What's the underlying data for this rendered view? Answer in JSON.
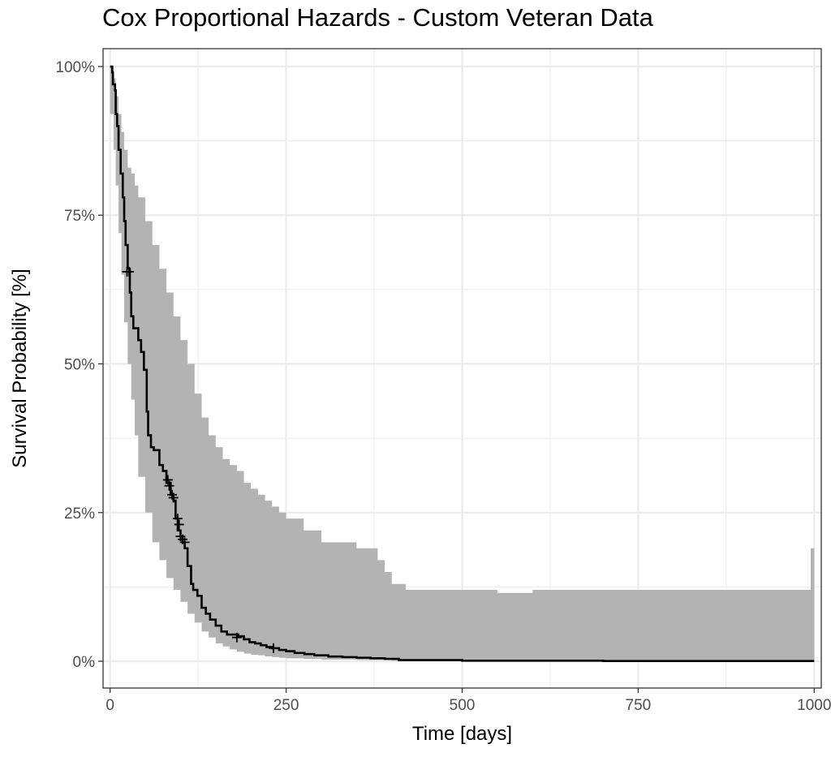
{
  "chart_data": {
    "type": "line",
    "title": "Cox Proportional Hazards - Custom Veteran Data",
    "xlabel": "Time [days]",
    "ylabel": "Survival Probability [%]",
    "xlim": [
      -10,
      1010
    ],
    "ylim": [
      -0.045,
      1.03
    ],
    "x_ticks": [
      0,
      250,
      500,
      750,
      1000
    ],
    "x_tick_labels": [
      "0",
      "250",
      "500",
      "750",
      "1000"
    ],
    "y_ticks": [
      0,
      0.25,
      0.5,
      0.75,
      1.0
    ],
    "y_tick_labels": [
      "0%",
      "25%",
      "50%",
      "75%",
      "100%"
    ],
    "grid": true,
    "colors": {
      "line": "#000000",
      "ribbon": "#b3b3b3",
      "grid": "#ebebeb",
      "border": "#333333"
    },
    "series": [
      {
        "type": "step",
        "x": [
          0,
          3,
          4,
          7,
          8,
          10,
          12,
          15,
          18,
          20,
          22,
          25,
          28,
          30,
          33,
          36,
          40,
          44,
          48,
          52,
          54,
          58,
          62,
          66,
          70,
          75,
          80,
          86,
          90,
          93,
          96,
          100,
          103,
          106,
          110,
          115,
          118,
          124,
          130,
          136,
          142,
          150,
          158,
          166,
          174,
          182,
          190,
          198,
          206,
          214,
          222,
          230,
          240,
          250,
          262,
          276,
          290,
          310,
          330,
          350,
          370,
          390,
          410,
          500,
          700,
          1000
        ],
        "y": [
          1.0,
          0.99,
          0.97,
          0.96,
          0.92,
          0.9,
          0.86,
          0.82,
          0.78,
          0.74,
          0.7,
          0.66,
          0.62,
          0.58,
          0.56,
          0.56,
          0.54,
          0.52,
          0.49,
          0.42,
          0.38,
          0.36,
          0.355,
          0.355,
          0.33,
          0.32,
          0.3,
          0.28,
          0.27,
          0.24,
          0.22,
          0.21,
          0.2,
          0.19,
          0.16,
          0.13,
          0.12,
          0.11,
          0.09,
          0.08,
          0.07,
          0.06,
          0.05,
          0.045,
          0.045,
          0.042,
          0.037,
          0.032,
          0.03,
          0.027,
          0.024,
          0.022,
          0.019,
          0.017,
          0.014,
          0.012,
          0.01,
          0.008,
          0.007,
          0.006,
          0.005,
          0.004,
          0.002,
          0.001,
          0.0005,
          0.0005
        ]
      },
      {
        "type": "band",
        "x": [
          0,
          5,
          8,
          12,
          16,
          20,
          25,
          30,
          35,
          40,
          50,
          60,
          70,
          80,
          90,
          100,
          110,
          120,
          130,
          140,
          150,
          160,
          170,
          180,
          190,
          200,
          210,
          220,
          230,
          240,
          250,
          275,
          300,
          320,
          350,
          380,
          390,
          400,
          420,
          460,
          500,
          550,
          600,
          700,
          800,
          900,
          995,
          1000
        ],
        "upper": [
          1.0,
          0.98,
          0.95,
          0.92,
          0.89,
          0.86,
          0.83,
          0.82,
          0.8,
          0.78,
          0.74,
          0.7,
          0.66,
          0.62,
          0.58,
          0.54,
          0.5,
          0.45,
          0.41,
          0.38,
          0.36,
          0.34,
          0.33,
          0.32,
          0.3,
          0.29,
          0.28,
          0.27,
          0.26,
          0.25,
          0.24,
          0.22,
          0.2,
          0.2,
          0.19,
          0.17,
          0.15,
          0.13,
          0.12,
          0.12,
          0.12,
          0.115,
          0.12,
          0.12,
          0.12,
          0.12,
          0.19,
          0.19
        ],
        "lower": [
          0.97,
          0.92,
          0.86,
          0.8,
          0.72,
          0.65,
          0.57,
          0.5,
          0.44,
          0.38,
          0.31,
          0.25,
          0.2,
          0.17,
          0.14,
          0.12,
          0.1,
          0.08,
          0.065,
          0.05,
          0.04,
          0.03,
          0.025,
          0.02,
          0.016,
          0.013,
          0.011,
          0.01,
          0.008,
          0.007,
          0.006,
          0.005,
          0.004,
          0.003,
          0.003,
          0.002,
          0.002,
          0.002,
          0.001,
          0.001,
          0.001,
          0.001,
          0.001,
          0.001,
          0.001,
          0.001,
          0.001,
          0.001
        ]
      }
    ],
    "censor_marks": {
      "x": [
        24,
        27,
        82,
        84,
        88,
        90,
        96,
        98,
        100,
        103,
        106,
        180,
        232
      ],
      "y": [
        0.655,
        0.655,
        0.305,
        0.295,
        0.28,
        0.275,
        0.24,
        0.23,
        0.21,
        0.205,
        0.2,
        0.04,
        0.022
      ]
    }
  }
}
